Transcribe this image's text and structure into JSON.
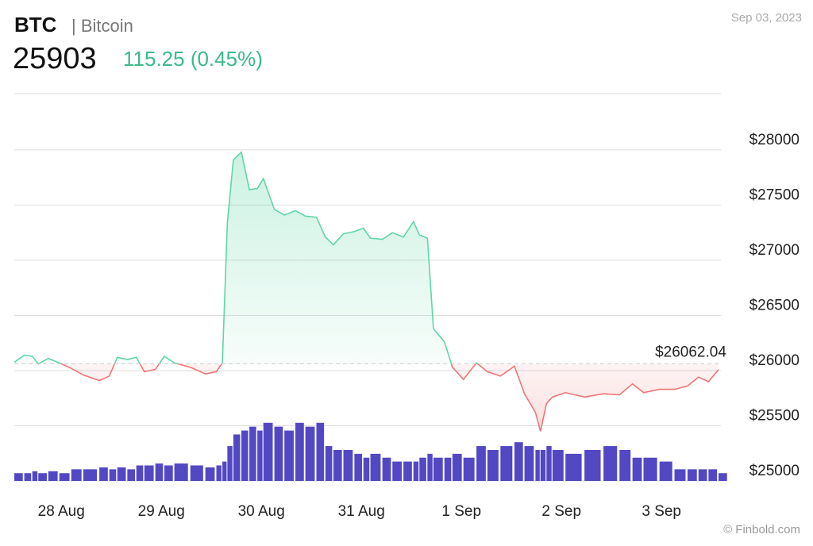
{
  "header": {
    "symbol": "BTC",
    "name": "| Bitcoin",
    "price": "25903",
    "change": "115.25 (0.45%)",
    "date": "Sep 03, 2023"
  },
  "credit": "© Finbold.com",
  "chart_data": {
    "type": "line",
    "x": [
      -0.47,
      -0.37,
      -0.29,
      -0.23,
      -0.13,
      -0.02,
      0.1,
      0.22,
      0.38,
      0.48,
      0.56,
      0.66,
      0.75,
      0.83,
      0.94,
      1.03,
      1.13,
      1.29,
      1.44,
      1.55,
      1.61,
      1.66,
      1.72,
      1.8,
      1.88,
      1.96,
      2.02,
      2.13,
      2.23,
      2.34,
      2.44,
      2.55,
      2.64,
      2.72,
      2.82,
      2.93,
      3.02,
      3.09,
      3.21,
      3.31,
      3.42,
      3.52,
      3.58,
      3.66,
      3.72,
      3.83,
      3.91,
      4.02,
      4.15,
      4.26,
      4.39,
      4.53,
      4.63,
      4.74,
      4.79,
      4.85,
      4.91,
      5.04,
      5.23,
      5.42,
      5.58,
      5.71,
      5.82,
      5.98,
      6.13,
      6.26,
      6.37,
      6.47,
      6.57
    ],
    "series": [
      {
        "color": "#5fd6a6",
        "color_below": "#f07575",
        "values": [
          26075,
          26140,
          26130,
          26060,
          26110,
          26070,
          26020,
          25960,
          25910,
          25950,
          26120,
          26100,
          26120,
          25990,
          26010,
          26130,
          26070,
          26030,
          25970,
          25990,
          26070,
          27340,
          27910,
          27980,
          27640,
          27650,
          27740,
          27460,
          27410,
          27450,
          27400,
          27390,
          27210,
          27140,
          27240,
          27260,
          27290,
          27200,
          27190,
          27250,
          27210,
          27350,
          27230,
          27200,
          26380,
          26260,
          26030,
          25920,
          26070,
          25990,
          25950,
          26040,
          25790,
          25620,
          25450,
          25700,
          25760,
          25800,
          25760,
          25790,
          25780,
          25880,
          25800,
          25830,
          25830,
          25860,
          25940,
          25900,
          26010
        ]
      },
      {
        "type": "bar",
        "axis": "y2",
        "color": "#5248c4",
        "values": [
          2,
          2,
          2.5,
          2,
          2.5,
          2,
          3,
          3,
          3.5,
          3,
          3.5,
          3,
          4,
          4,
          4.5,
          4,
          4.5,
          4,
          3.5,
          4,
          5,
          9,
          12,
          13,
          14,
          13,
          15,
          14,
          13,
          15,
          14,
          15,
          9,
          8,
          8,
          7,
          6,
          7,
          6,
          5,
          5,
          5,
          6,
          7,
          6,
          6,
          7,
          6,
          9,
          8,
          9,
          10,
          9,
          8,
          8,
          9,
          8,
          7,
          8,
          9,
          8,
          6,
          6,
          5,
          3,
          3,
          3,
          3,
          2
        ]
      }
    ],
    "reference": {
      "value": 26062.04,
      "label": "$26062.04"
    },
    "xlim": [
      -0.47,
      6.57
    ],
    "xticks": [
      {
        "value": 0,
        "label": "28 Aug"
      },
      {
        "value": 1,
        "label": "29 Aug"
      },
      {
        "value": 2,
        "label": "30 Aug"
      },
      {
        "value": 3,
        "label": "31 Aug"
      },
      {
        "value": 4,
        "label": "1 Sep"
      },
      {
        "value": 5,
        "label": "2 Sep"
      },
      {
        "value": 6,
        "label": "3 Sep"
      }
    ],
    "ylim": [
      25000,
      28510
    ],
    "yticks": [
      {
        "value": 25000,
        "label": "$25000"
      },
      {
        "value": 25500,
        "label": "$25500"
      },
      {
        "value": 26000,
        "label": "$26000"
      },
      {
        "value": 26500,
        "label": "$26500"
      },
      {
        "value": 27000,
        "label": "$27000"
      },
      {
        "value": 27500,
        "label": "$27500"
      },
      {
        "value": 28000,
        "label": "$28000"
      }
    ],
    "y2lim": [
      0,
      100
    ],
    "grid": true
  }
}
